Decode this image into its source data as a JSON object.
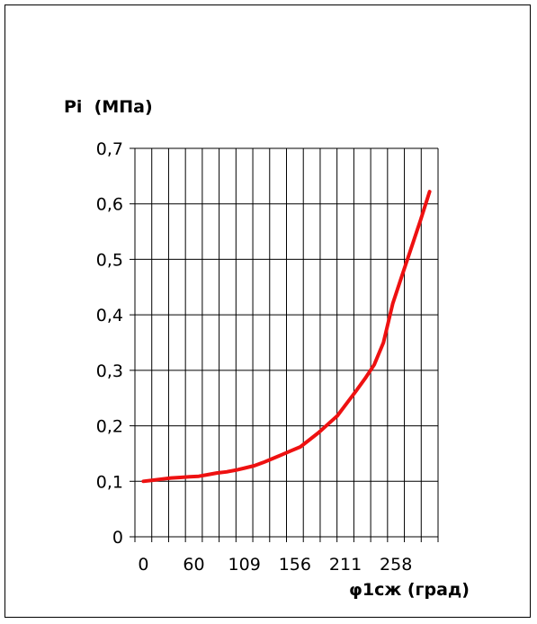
{
  "chart_data": {
    "type": "line",
    "title": "",
    "ylabel": "Pi  (МПа)",
    "xlabel": "φ1сж (град)",
    "x_tick_labels": [
      "0",
      "60",
      "109",
      "156",
      "211",
      "258"
    ],
    "y_tick_labels": [
      "0",
      "0,1",
      "0,2",
      "0,3",
      "0,4",
      "0,5",
      "0,6",
      "0,7"
    ],
    "ylim": [
      0,
      0.7
    ],
    "grid": true,
    "x_category_count": 18,
    "series": [
      {
        "color": "#ee1111",
        "x": [
          0,
          10,
          20,
          30,
          40,
          50,
          60,
          70,
          80,
          90,
          100,
          110,
          120,
          130,
          140,
          150,
          160,
          170,
          180,
          190,
          200,
          210,
          220,
          230,
          240,
          250,
          260,
          270,
          280,
          290,
          300,
          310
        ],
        "values": [
          0.1,
          0.102,
          0.104,
          0.106,
          0.107,
          0.108,
          0.109,
          0.112,
          0.115,
          0.117,
          0.12,
          0.124,
          0.128,
          0.134,
          0.141,
          0.148,
          0.155,
          0.162,
          0.175,
          0.188,
          0.203,
          0.218,
          0.24,
          0.262,
          0.285,
          0.31,
          0.35,
          0.42,
          0.47,
          0.52,
          0.57,
          0.622
        ]
      }
    ]
  }
}
